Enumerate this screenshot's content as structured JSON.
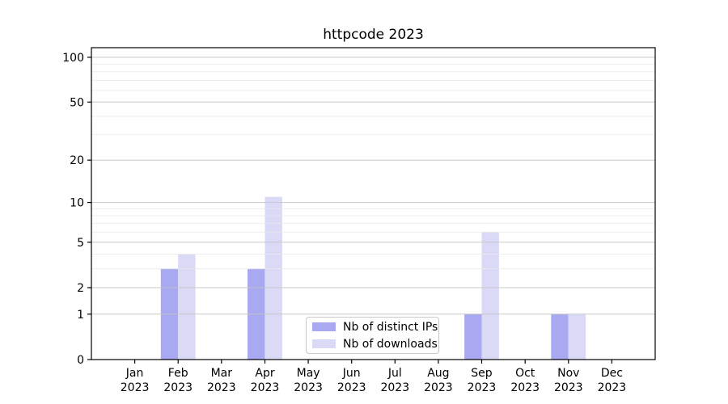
{
  "figure": {
    "title": "httpcode 2023",
    "background": "#ffffff"
  },
  "chart_data": {
    "type": "bar",
    "title": "httpcode 2023",
    "categories": [
      "Jan",
      "Feb",
      "Mar",
      "Apr",
      "May",
      "Jun",
      "Jul",
      "Aug",
      "Sep",
      "Oct",
      "Nov",
      "Dec"
    ],
    "category_year": "2023",
    "series": [
      {
        "name": "Nb of distinct IPs",
        "color": "#a9a9f1",
        "values": [
          0,
          3,
          0,
          3,
          0,
          0,
          0,
          0,
          1,
          0,
          1,
          0
        ]
      },
      {
        "name": "Nb of downloads",
        "color": "#dadaf7",
        "values": [
          0,
          4,
          0,
          11,
          0,
          0,
          0,
          0,
          6,
          0,
          1,
          0
        ]
      }
    ],
    "xlabel": "",
    "ylabel": "",
    "y_scale": "log10(1+y)",
    "y_major_ticks": [
      0,
      1,
      2,
      5,
      10,
      20,
      50,
      100
    ],
    "y_minor_gridlines": [
      3,
      4,
      6,
      7,
      8,
      9,
      30,
      40,
      60,
      70,
      80,
      90
    ],
    "ylim": [
      0,
      116
    ],
    "grid": "horizontal major and minor gridlines, drawn above bars",
    "legend_position": "lower center inside plot",
    "colors": {
      "major_grid": "#c3c3c3",
      "minor_grid": "#e9e9e9",
      "spine": "#000000",
      "tick_text": "#000000"
    }
  }
}
